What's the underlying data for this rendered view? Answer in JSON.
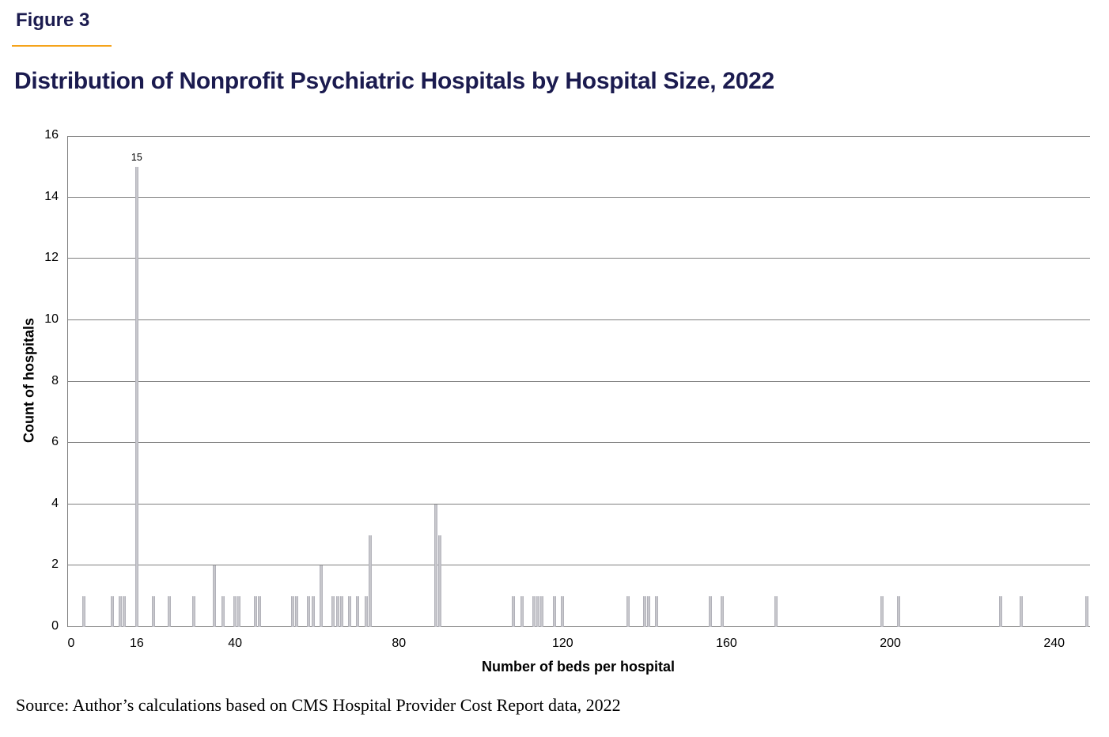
{
  "figure_label": "Figure 3",
  "title": "Distribution of Nonprofit Psychiatric Hospitals by Hospital Size, 2022",
  "source_note": "Source: Author’s calculations based on CMS Hospital Provider Cost Report data, 2022",
  "colors": {
    "heading_navy": "#1b1b4f",
    "accent_orange": "#f5a31b",
    "gridline_gray": "#7f7f7f",
    "bar_fill": "#c7c7cc",
    "bar_edge": "#b2b2ba",
    "text_black": "#000000"
  },
  "chart_data": {
    "type": "bar",
    "title": "Distribution of Nonprofit Psychiatric Hospitals by Hospital Size, 2022",
    "xlabel": "Number of beds per hospital",
    "ylabel": "Count of hospitals",
    "xlim": [
      0,
      249
    ],
    "ylim": [
      0,
      16
    ],
    "x_ticks": [
      0,
      16,
      40,
      80,
      120,
      160,
      200,
      240
    ],
    "y_ticks": [
      0,
      2,
      4,
      6,
      8,
      10,
      12,
      14,
      16
    ],
    "grid": "horizontal-only",
    "legend": "none",
    "bar_annotation": {
      "x": 16,
      "y": 15,
      "label": "15"
    },
    "points": [
      {
        "beds": 3,
        "count": 1
      },
      {
        "beds": 10,
        "count": 1
      },
      {
        "beds": 12,
        "count": 1
      },
      {
        "beds": 13,
        "count": 1
      },
      {
        "beds": 16,
        "count": 15
      },
      {
        "beds": 20,
        "count": 1
      },
      {
        "beds": 24,
        "count": 1
      },
      {
        "beds": 30,
        "count": 1
      },
      {
        "beds": 35,
        "count": 2
      },
      {
        "beds": 37,
        "count": 1
      },
      {
        "beds": 40,
        "count": 1
      },
      {
        "beds": 41,
        "count": 1
      },
      {
        "beds": 45,
        "count": 1
      },
      {
        "beds": 46,
        "count": 1
      },
      {
        "beds": 54,
        "count": 1
      },
      {
        "beds": 55,
        "count": 1
      },
      {
        "beds": 58,
        "count": 1
      },
      {
        "beds": 59,
        "count": 1
      },
      {
        "beds": 61,
        "count": 2
      },
      {
        "beds": 64,
        "count": 1
      },
      {
        "beds": 65,
        "count": 1
      },
      {
        "beds": 66,
        "count": 1
      },
      {
        "beds": 68,
        "count": 1
      },
      {
        "beds": 70,
        "count": 1
      },
      {
        "beds": 72,
        "count": 1
      },
      {
        "beds": 73,
        "count": 3
      },
      {
        "beds": 89,
        "count": 4
      },
      {
        "beds": 90,
        "count": 3
      },
      {
        "beds": 108,
        "count": 1
      },
      {
        "beds": 110,
        "count": 1
      },
      {
        "beds": 113,
        "count": 1
      },
      {
        "beds": 114,
        "count": 1
      },
      {
        "beds": 115,
        "count": 1
      },
      {
        "beds": 118,
        "count": 1
      },
      {
        "beds": 120,
        "count": 1
      },
      {
        "beds": 136,
        "count": 1
      },
      {
        "beds": 140,
        "count": 1
      },
      {
        "beds": 141,
        "count": 1
      },
      {
        "beds": 143,
        "count": 1
      },
      {
        "beds": 156,
        "count": 1
      },
      {
        "beds": 159,
        "count": 1
      },
      {
        "beds": 172,
        "count": 1
      },
      {
        "beds": 198,
        "count": 1
      },
      {
        "beds": 202,
        "count": 1
      },
      {
        "beds": 227,
        "count": 1
      },
      {
        "beds": 232,
        "count": 1
      },
      {
        "beds": 248,
        "count": 1
      }
    ]
  }
}
